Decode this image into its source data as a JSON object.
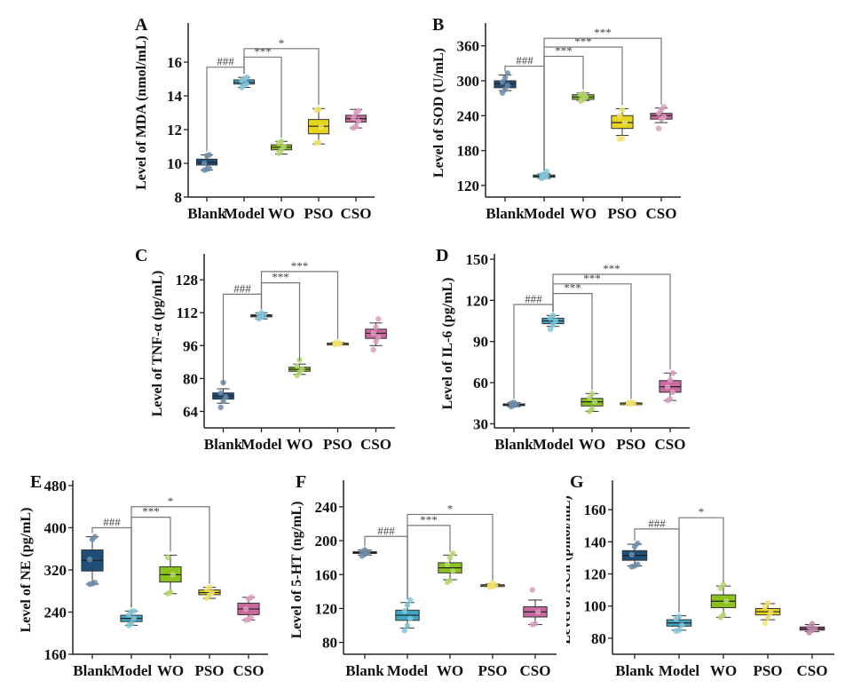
{
  "chart_data": [
    {
      "id": "A",
      "type": "box",
      "panel_label": "A",
      "ylabel": "Level of MDA (nmol/mL)",
      "ylim": [
        8,
        18
      ],
      "yticks": [
        8,
        10,
        12,
        14,
        16
      ],
      "categories": [
        "Blank",
        "Model",
        "WO",
        "PSO",
        "CSO"
      ],
      "boxes": [
        {
          "group": "Blank",
          "min": 9.6,
          "q1": 9.9,
          "median": 10.05,
          "q3": 10.25,
          "max": 10.5,
          "points": [
            9.6,
            9.65,
            9.7,
            10.0,
            10.45,
            10.5
          ]
        },
        {
          "group": "Model",
          "min": 14.5,
          "q1": 14.7,
          "median": 14.8,
          "q3": 14.95,
          "max": 15.1,
          "points": [
            14.5,
            14.6,
            14.7,
            14.9,
            15.0,
            15.1
          ]
        },
        {
          "group": "WO",
          "min": 10.55,
          "q1": 10.8,
          "median": 10.95,
          "q3": 11.1,
          "max": 11.3,
          "points": [
            10.6,
            10.8,
            11.0,
            11.2,
            11.3
          ]
        },
        {
          "group": "PSO",
          "min": 11.15,
          "q1": 11.75,
          "median": 12.2,
          "q3": 12.6,
          "max": 13.25,
          "points": [
            11.2,
            11.25,
            12.15,
            13.15,
            13.2
          ]
        },
        {
          "group": "CSO",
          "min": 12.1,
          "q1": 12.45,
          "median": 12.65,
          "q3": 12.85,
          "max": 13.2,
          "points": [
            12.1,
            12.2,
            12.5,
            12.7,
            13.0,
            13.1
          ]
        }
      ],
      "annotations": [
        {
          "from": "Blank",
          "to": "Model",
          "label": "###",
          "level": 15.7
        },
        {
          "from": "Model",
          "to": "WO",
          "label": "***",
          "level": 16.3
        },
        {
          "from": "Model",
          "to": "PSO",
          "label": "*",
          "level": 16.8
        }
      ]
    },
    {
      "id": "B",
      "type": "box",
      "panel_label": "B",
      "ylabel": "Level of SOD (U/mL)",
      "ylim": [
        100,
        390
      ],
      "yticks": [
        120,
        180,
        240,
        300,
        360
      ],
      "categories": [
        "Blank",
        "Model",
        "WO",
        "PSO",
        "CSO"
      ],
      "boxes": [
        {
          "group": "Blank",
          "min": 283,
          "q1": 288,
          "median": 295,
          "q3": 300,
          "max": 310,
          "points": [
            279,
            285,
            292,
            298,
            305,
            313
          ]
        },
        {
          "group": "Model",
          "min": 132,
          "q1": 134,
          "median": 136,
          "q3": 138,
          "max": 140,
          "points": [
            132,
            134,
            136,
            138,
            140,
            144
          ]
        },
        {
          "group": "WO",
          "min": 266,
          "q1": 268,
          "median": 272,
          "q3": 276,
          "max": 279,
          "points": [
            265,
            268,
            272,
            276,
            278
          ]
        },
        {
          "group": "PSO",
          "min": 206,
          "q1": 218,
          "median": 228,
          "q3": 240,
          "max": 252,
          "points": [
            200,
            201,
            228,
            240,
            250
          ]
        },
        {
          "group": "CSO",
          "min": 228,
          "q1": 234,
          "median": 240,
          "q3": 244,
          "max": 253,
          "points": [
            218,
            234,
            238,
            244,
            250,
            255
          ]
        }
      ],
      "annotations": [
        {
          "from": "Blank",
          "to": "Model",
          "label": "###",
          "level": 325
        },
        {
          "from": "Model",
          "to": "WO",
          "label": "***",
          "level": 342
        },
        {
          "from": "Model",
          "to": "PSO",
          "label": "***",
          "level": 358
        },
        {
          "from": "Model",
          "to": "CSO",
          "label": "***",
          "level": 373
        }
      ]
    },
    {
      "id": "C",
      "type": "box",
      "panel_label": "C",
      "ylabel": "Level of TNF-α (pg/mL)",
      "ylim": [
        56,
        138
      ],
      "yticks": [
        64,
        80,
        96,
        112,
        128
      ],
      "categories": [
        "Blank",
        "Model",
        "WO",
        "PSO",
        "CSO"
      ],
      "boxes": [
        {
          "group": "Blank",
          "min": 68,
          "q1": 70,
          "median": 71.5,
          "q3": 73,
          "max": 75,
          "points": [
            66,
            69,
            71,
            73,
            78
          ]
        },
        {
          "group": "Model",
          "min": 109,
          "q1": 110,
          "median": 110.5,
          "q3": 111,
          "max": 112,
          "points": [
            109,
            110,
            110.5,
            111,
            112
          ]
        },
        {
          "group": "WO",
          "min": 82,
          "q1": 83.5,
          "median": 84.5,
          "q3": 85.5,
          "max": 87,
          "points": [
            81.5,
            83,
            84.5,
            86,
            89
          ]
        },
        {
          "group": "PSO",
          "min": 96.5,
          "q1": 96.7,
          "median": 97,
          "q3": 97.2,
          "max": 97.5,
          "points": [
            96.5,
            96.8,
            97,
            97.2,
            97.5
          ]
        },
        {
          "group": "CSO",
          "min": 96,
          "q1": 99.5,
          "median": 102,
          "q3": 104,
          "max": 107,
          "points": [
            94,
            98,
            100,
            102,
            105,
            109
          ]
        }
      ],
      "annotations": [
        {
          "from": "Blank",
          "to": "Model",
          "label": "###",
          "level": 121
        },
        {
          "from": "Model",
          "to": "WO",
          "label": "***",
          "level": 126.5
        },
        {
          "from": "Model",
          "to": "PSO",
          "label": "***",
          "level": 132
        }
      ]
    },
    {
      "id": "D",
      "type": "box",
      "panel_label": "D",
      "ylabel": "Level of IL-6 (pg/mL)",
      "ylim": [
        27,
        150
      ],
      "yticks": [
        30,
        60,
        90,
        120,
        150
      ],
      "categories": [
        "Blank",
        "Model",
        "WO",
        "PSO",
        "CSO"
      ],
      "boxes": [
        {
          "group": "Blank",
          "min": 42.5,
          "q1": 43.5,
          "median": 44,
          "q3": 44.5,
          "max": 45.5,
          "points": [
            42.5,
            43.5,
            44,
            45,
            45.5
          ]
        },
        {
          "group": "Model",
          "min": 101,
          "q1": 103,
          "median": 105,
          "q3": 107,
          "max": 109,
          "points": [
            99,
            102,
            105,
            107,
            109
          ]
        },
        {
          "group": "WO",
          "min": 39,
          "q1": 43,
          "median": 46,
          "q3": 48.5,
          "max": 52,
          "points": [
            39,
            41,
            46,
            49,
            52
          ]
        },
        {
          "group": "PSO",
          "min": 44.5,
          "q1": 44.8,
          "median": 45,
          "q3": 45.2,
          "max": 45.5,
          "points": [
            44.5,
            44.8,
            45,
            45.3,
            45.5
          ]
        },
        {
          "group": "CSO",
          "min": 47,
          "q1": 53,
          "median": 57,
          "q3": 61.5,
          "max": 67,
          "points": [
            47,
            48,
            53,
            57,
            62,
            67
          ]
        }
      ],
      "annotations": [
        {
          "from": "Blank",
          "to": "Model",
          "label": "###",
          "level": 117
        },
        {
          "from": "Model",
          "to": "WO",
          "label": "***",
          "level": 125
        },
        {
          "from": "Model",
          "to": "PSO",
          "label": "***",
          "level": 132
        },
        {
          "from": "Model",
          "to": "CSO",
          "label": "***",
          "level": 139
        }
      ]
    },
    {
      "id": "E",
      "type": "box",
      "panel_label": "E",
      "ylabel": "Level of NE (pg/mL)",
      "ylim": [
        160,
        480
      ],
      "yticks": [
        160,
        240,
        320,
        400,
        480
      ],
      "categories": [
        "Blank",
        "Model",
        "WO",
        "PSO",
        "CSO"
      ],
      "boxes": [
        {
          "group": "Blank",
          "min": 293,
          "q1": 318,
          "median": 338,
          "q3": 358,
          "max": 383,
          "points": [
            293,
            294,
            296,
            340,
            378,
            383
          ]
        },
        {
          "group": "Model",
          "min": 215,
          "q1": 222,
          "median": 228,
          "q3": 234,
          "max": 242,
          "points": [
            215,
            218,
            228,
            235,
            241,
            242
          ]
        },
        {
          "group": "WO",
          "min": 275,
          "q1": 297,
          "median": 311,
          "q3": 326,
          "max": 348,
          "points": [
            275,
            278,
            311,
            344
          ]
        },
        {
          "group": "PSO",
          "min": 266,
          "q1": 273,
          "median": 277,
          "q3": 282,
          "max": 287,
          "points": [
            266,
            272,
            277,
            283,
            287
          ]
        },
        {
          "group": "CSO",
          "min": 225,
          "q1": 235,
          "median": 246,
          "q3": 257,
          "max": 268,
          "points": [
            225,
            226,
            230,
            246,
            265,
            268
          ]
        }
      ],
      "annotations": [
        {
          "from": "Blank",
          "to": "Model",
          "label": "###",
          "level": 400
        },
        {
          "from": "Model",
          "to": "WO",
          "label": "***",
          "level": 420
        },
        {
          "from": "Model",
          "to": "PSO",
          "label": "*",
          "level": 440
        }
      ]
    },
    {
      "id": "F",
      "type": "box",
      "panel_label": "F",
      "ylabel": "Level of 5-HT (ng/mL)",
      "ylim": [
        66,
        265
      ],
      "yticks": [
        80,
        120,
        160,
        200,
        240
      ],
      "categories": [
        "Blank",
        "Model",
        "WO",
        "PSO",
        "CSO"
      ],
      "boxes": [
        {
          "group": "Blank",
          "min": 183,
          "q1": 185,
          "median": 186,
          "q3": 187,
          "max": 189,
          "points": [
            182,
            184,
            186,
            187,
            189
          ]
        },
        {
          "group": "Model",
          "min": 97,
          "q1": 106,
          "median": 112,
          "q3": 118,
          "max": 127,
          "points": [
            94,
            100,
            108,
            117,
            124,
            130
          ]
        },
        {
          "group": "WO",
          "min": 154,
          "q1": 162,
          "median": 168,
          "q3": 174,
          "max": 183,
          "points": [
            151,
            153,
            164,
            172,
            180,
            185
          ]
        },
        {
          "group": "PSO",
          "min": 146,
          "q1": 147,
          "median": 147.5,
          "q3": 148,
          "max": 149,
          "points": [
            145,
            146,
            147.5,
            148,
            150
          ]
        },
        {
          "group": "CSO",
          "min": 101,
          "q1": 110,
          "median": 116,
          "q3": 122,
          "max": 130,
          "points": [
            101,
            102,
            116,
            142
          ]
        }
      ],
      "annotations": [
        {
          "from": "Blank",
          "to": "Model",
          "label": "###",
          "level": 205
        },
        {
          "from": "Model",
          "to": "WO",
          "label": "***",
          "level": 218
        },
        {
          "from": "Model",
          "to": "PSO",
          "label": "*",
          "level": 231
        }
      ]
    },
    {
      "id": "G",
      "type": "box",
      "panel_label": "G",
      "ylabel": "Level of ACh (pmol/mL)",
      "ylim": [
        70,
        175
      ],
      "yticks": [
        80,
        100,
        120,
        140,
        160
      ],
      "categories": [
        "Blank",
        "Model",
        "WO",
        "PSO",
        "CSO"
      ],
      "boxes": [
        {
          "group": "Blank",
          "min": 125,
          "q1": 128.5,
          "median": 131.5,
          "q3": 134.5,
          "max": 138.5,
          "points": [
            124.5,
            125,
            126,
            132,
            137,
            139
          ]
        },
        {
          "group": "Model",
          "min": 85,
          "q1": 87.5,
          "median": 89.5,
          "q3": 91.5,
          "max": 94,
          "points": [
            84.5,
            85,
            88,
            92,
            93.5
          ]
        },
        {
          "group": "WO",
          "min": 93,
          "q1": 99,
          "median": 103,
          "q3": 107,
          "max": 112.5,
          "points": [
            93,
            94.5,
            103,
            111,
            113.5
          ]
        },
        {
          "group": "PSO",
          "min": 91.5,
          "q1": 94.5,
          "median": 96.5,
          "q3": 98.5,
          "max": 101.5,
          "points": [
            89.5,
            93,
            96,
            99.5,
            102
          ]
        },
        {
          "group": "CSO",
          "min": 84,
          "q1": 85,
          "median": 86,
          "q3": 87,
          "max": 88.5,
          "points": [
            83.5,
            85,
            86,
            87,
            89
          ]
        }
      ],
      "annotations": [
        {
          "from": "Blank",
          "to": "Model",
          "label": "###",
          "level": 148
        },
        {
          "from": "Model",
          "to": "WO",
          "label": "*",
          "level": 155
        }
      ]
    }
  ],
  "group_colors": {
    "Blank": "#1f4e79",
    "Model": "#3fa7c4",
    "WO": "#8cc21f",
    "PSO": "#e6d41e",
    "CSO": "#c9699e"
  },
  "cso_color_G": "#a04a7a"
}
